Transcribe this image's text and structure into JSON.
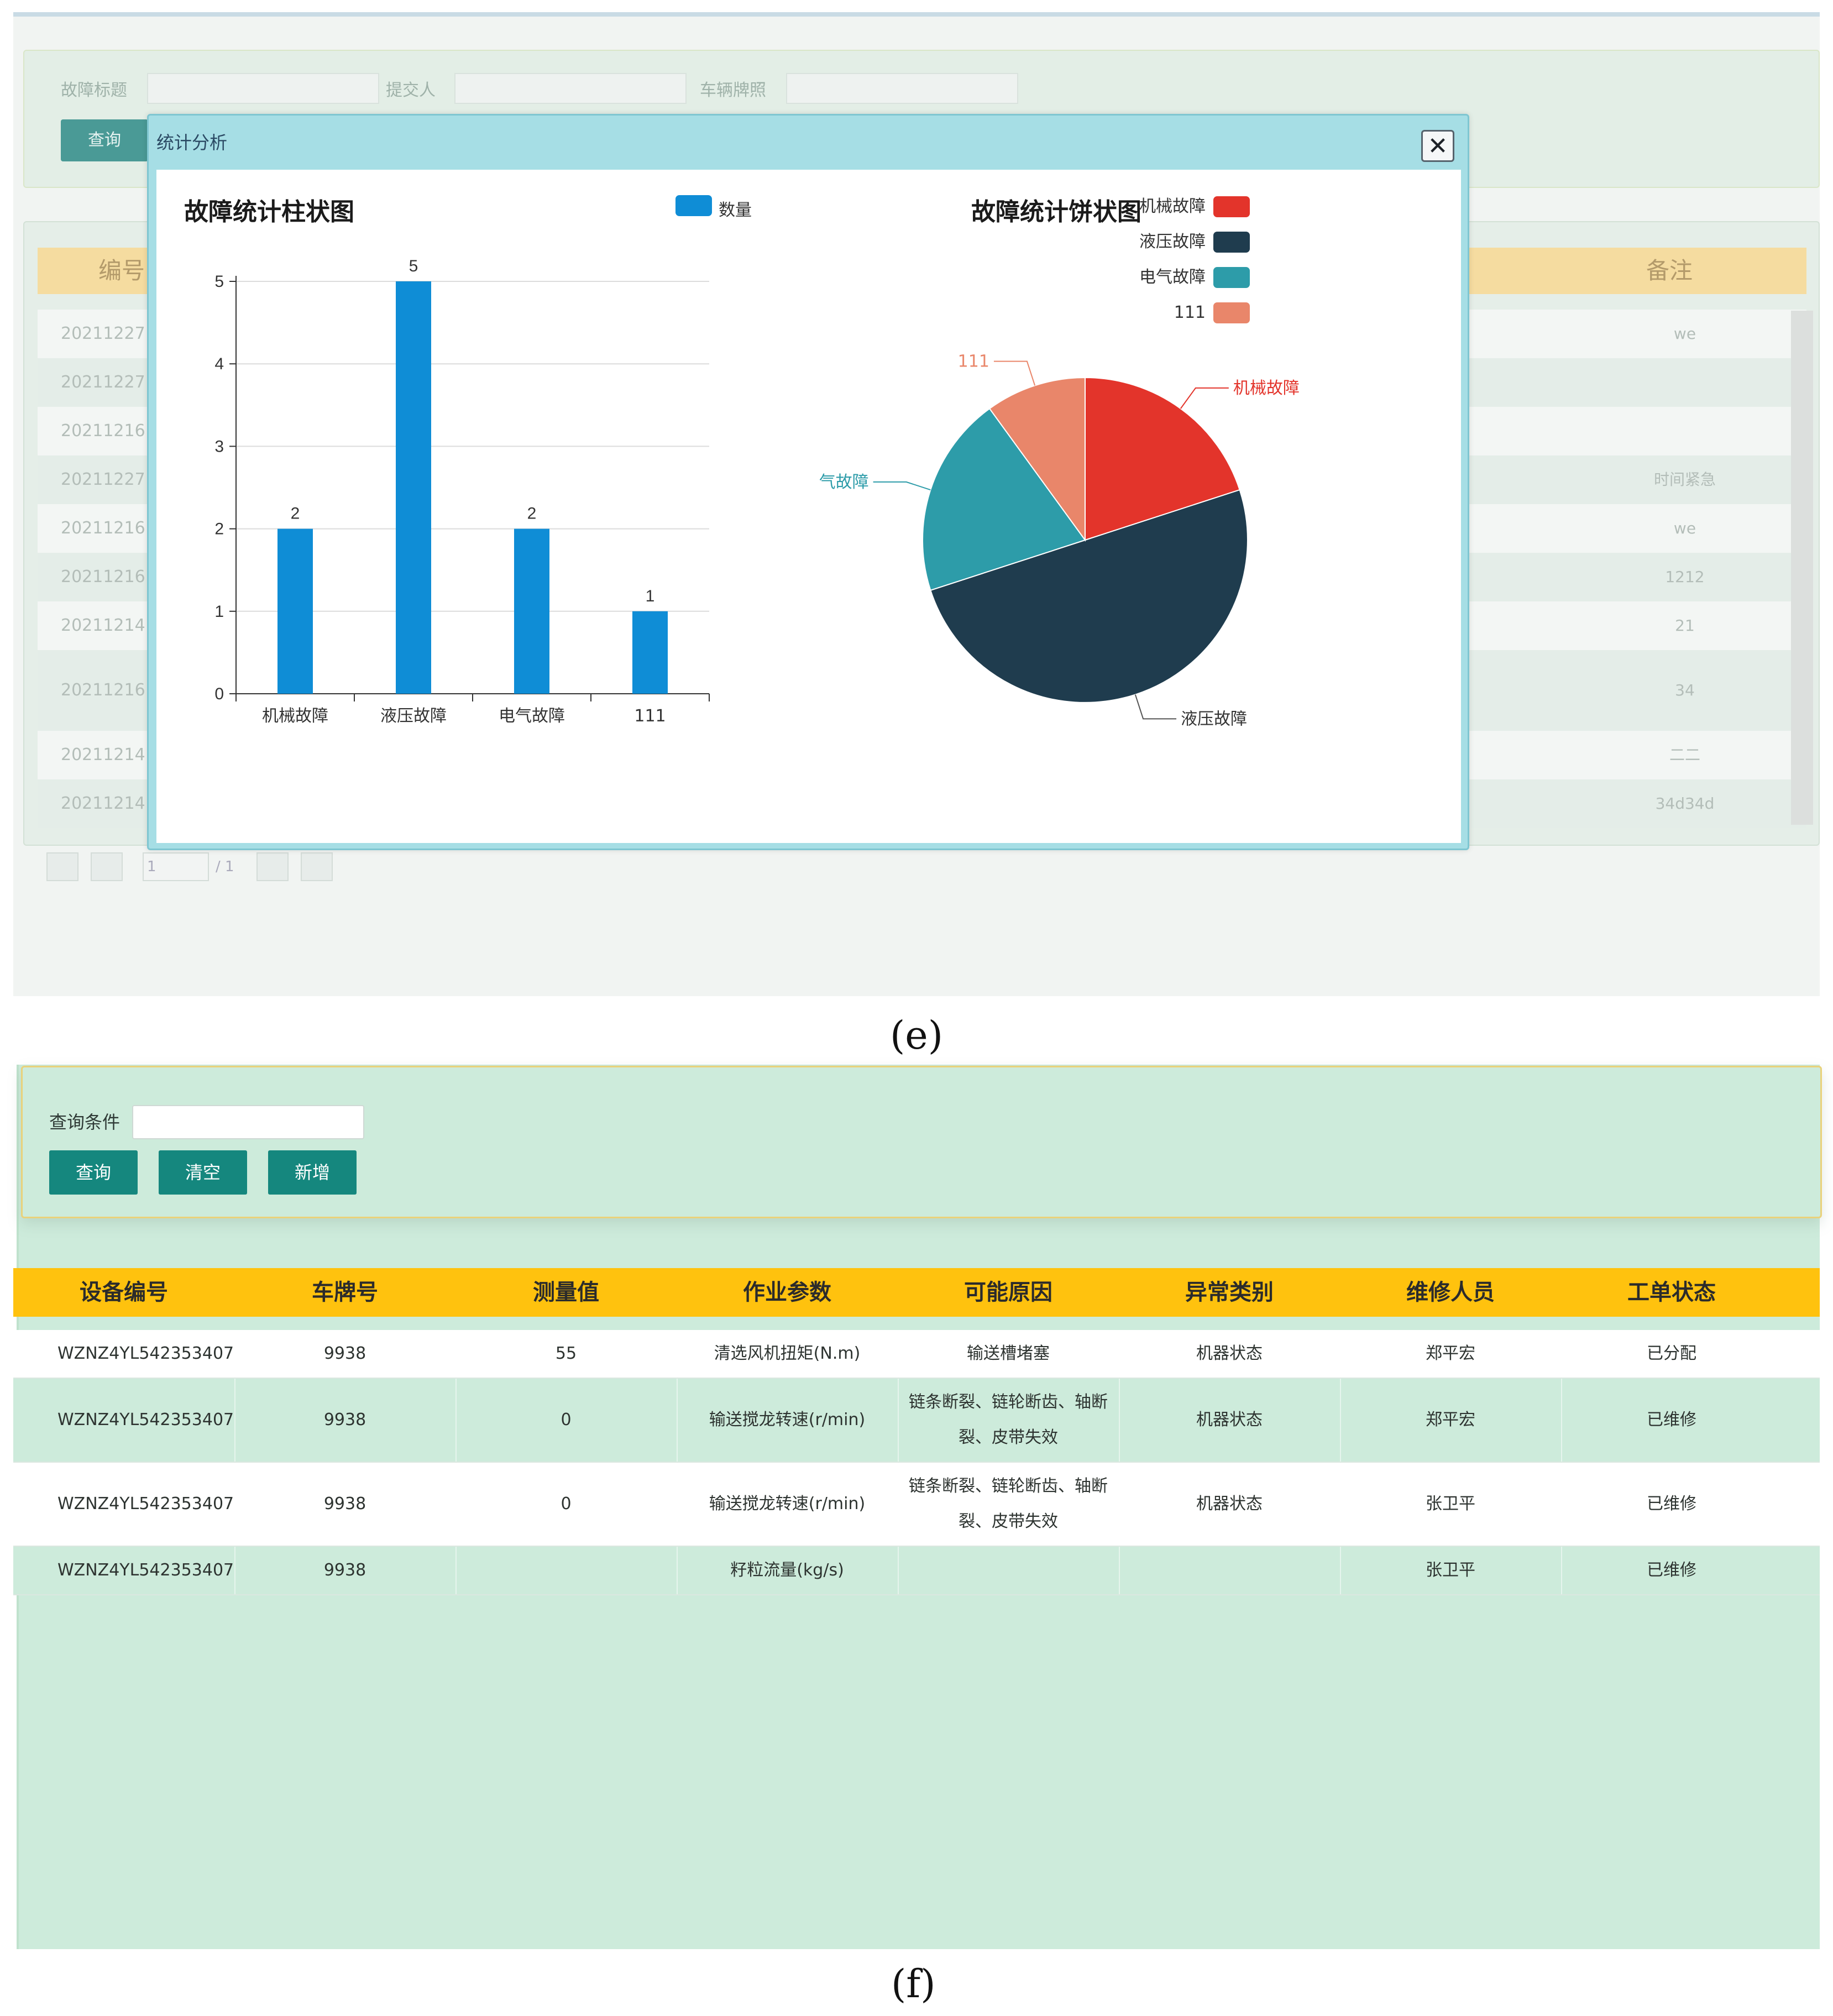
{
  "panel_e": {
    "search": {
      "labels": [
        "故障标题",
        "提交人",
        "车辆牌照"
      ],
      "query_label": "查询"
    },
    "table": {
      "headers": [
        "编号",
        "备注"
      ],
      "rows": [
        {
          "id": "2021122715",
          "note": "we"
        },
        {
          "id": "2021122712",
          "note": ""
        },
        {
          "id": "2021121614",
          "note": ""
        },
        {
          "id": "2021122712",
          "note": "时间紧急"
        },
        {
          "id": "2021121613",
          "note": "we"
        },
        {
          "id": "2021121613",
          "note": "1212"
        },
        {
          "id": "2021121416",
          "note": "21"
        },
        {
          "id": "2021121613",
          "note": "34"
        },
        {
          "id": "2021121415",
          "note": "二二"
        },
        {
          "id": "2021121411",
          "note": "34d34d"
        }
      ]
    },
    "pager": {
      "page": "1",
      "total": "/ 1"
    },
    "dialog": {
      "title": "统计分析",
      "close_label": "✕",
      "bar_chart_title": "故障统计柱状图",
      "pie_chart_title": "故障统计饼状图"
    },
    "caption": "(e)"
  },
  "chart_data": [
    {
      "type": "bar",
      "title": "故障统计柱状图",
      "categories": [
        "机械故障",
        "液压故障",
        "电气故障",
        "111"
      ],
      "series": [
        {
          "name": "数量",
          "values": [
            2,
            5,
            2,
            1
          ]
        }
      ],
      "ylim": [
        0,
        5
      ],
      "yticks": [
        0,
        1,
        2,
        3,
        4,
        5
      ],
      "grid": true,
      "legend": "top-right",
      "color": "#0f8dd6"
    },
    {
      "type": "pie",
      "title": "故障统计饼状图",
      "labels": [
        "机械故障",
        "液压故障",
        "电气故障",
        "111"
      ],
      "values": [
        2,
        5,
        2,
        1
      ],
      "colors": [
        "#e3342b",
        "#1f3c4e",
        "#2d9ca9",
        "#e9866a"
      ],
      "legend": "top-right"
    }
  ],
  "panel_f": {
    "search": {
      "label": "查询条件",
      "input_value": "",
      "buttons": [
        "查询",
        "清空",
        "新增"
      ]
    },
    "table": {
      "headers": [
        "设备编号",
        "车牌号",
        "测量值",
        "作业参数",
        "可能原因",
        "异常类别",
        "维修人员",
        "工单状态"
      ],
      "rows": [
        [
          "WZNZ4YL542353407",
          "9938",
          "55",
          "清选风机扭矩(N.m)",
          "输送槽堵塞",
          "机器状态",
          "郑平宏",
          "已分配"
        ],
        [
          "WZNZ4YL542353407",
          "9938",
          "0",
          "输送搅龙转速(r/min)",
          "链条断裂、链轮断齿、轴断裂、皮带失效",
          "机器状态",
          "郑平宏",
          "已维修"
        ],
        [
          "WZNZ4YL542353407",
          "9938",
          "0",
          "输送搅龙转速(r/min)",
          "链条断裂、链轮断齿、轴断裂、皮带失效",
          "机器状态",
          "张卫平",
          "已维修"
        ],
        [
          "WZNZ4YL542353407",
          "9938",
          "",
          "籽粒流量(kg/s)",
          "",
          "",
          "张卫平",
          "已维修"
        ]
      ]
    },
    "caption": "(f)"
  },
  "colors": {
    "dialog_header": "#a6dee5",
    "f_button": "#15877e",
    "f_header": "#ffc20e",
    "f_background": "#cdebdb"
  }
}
